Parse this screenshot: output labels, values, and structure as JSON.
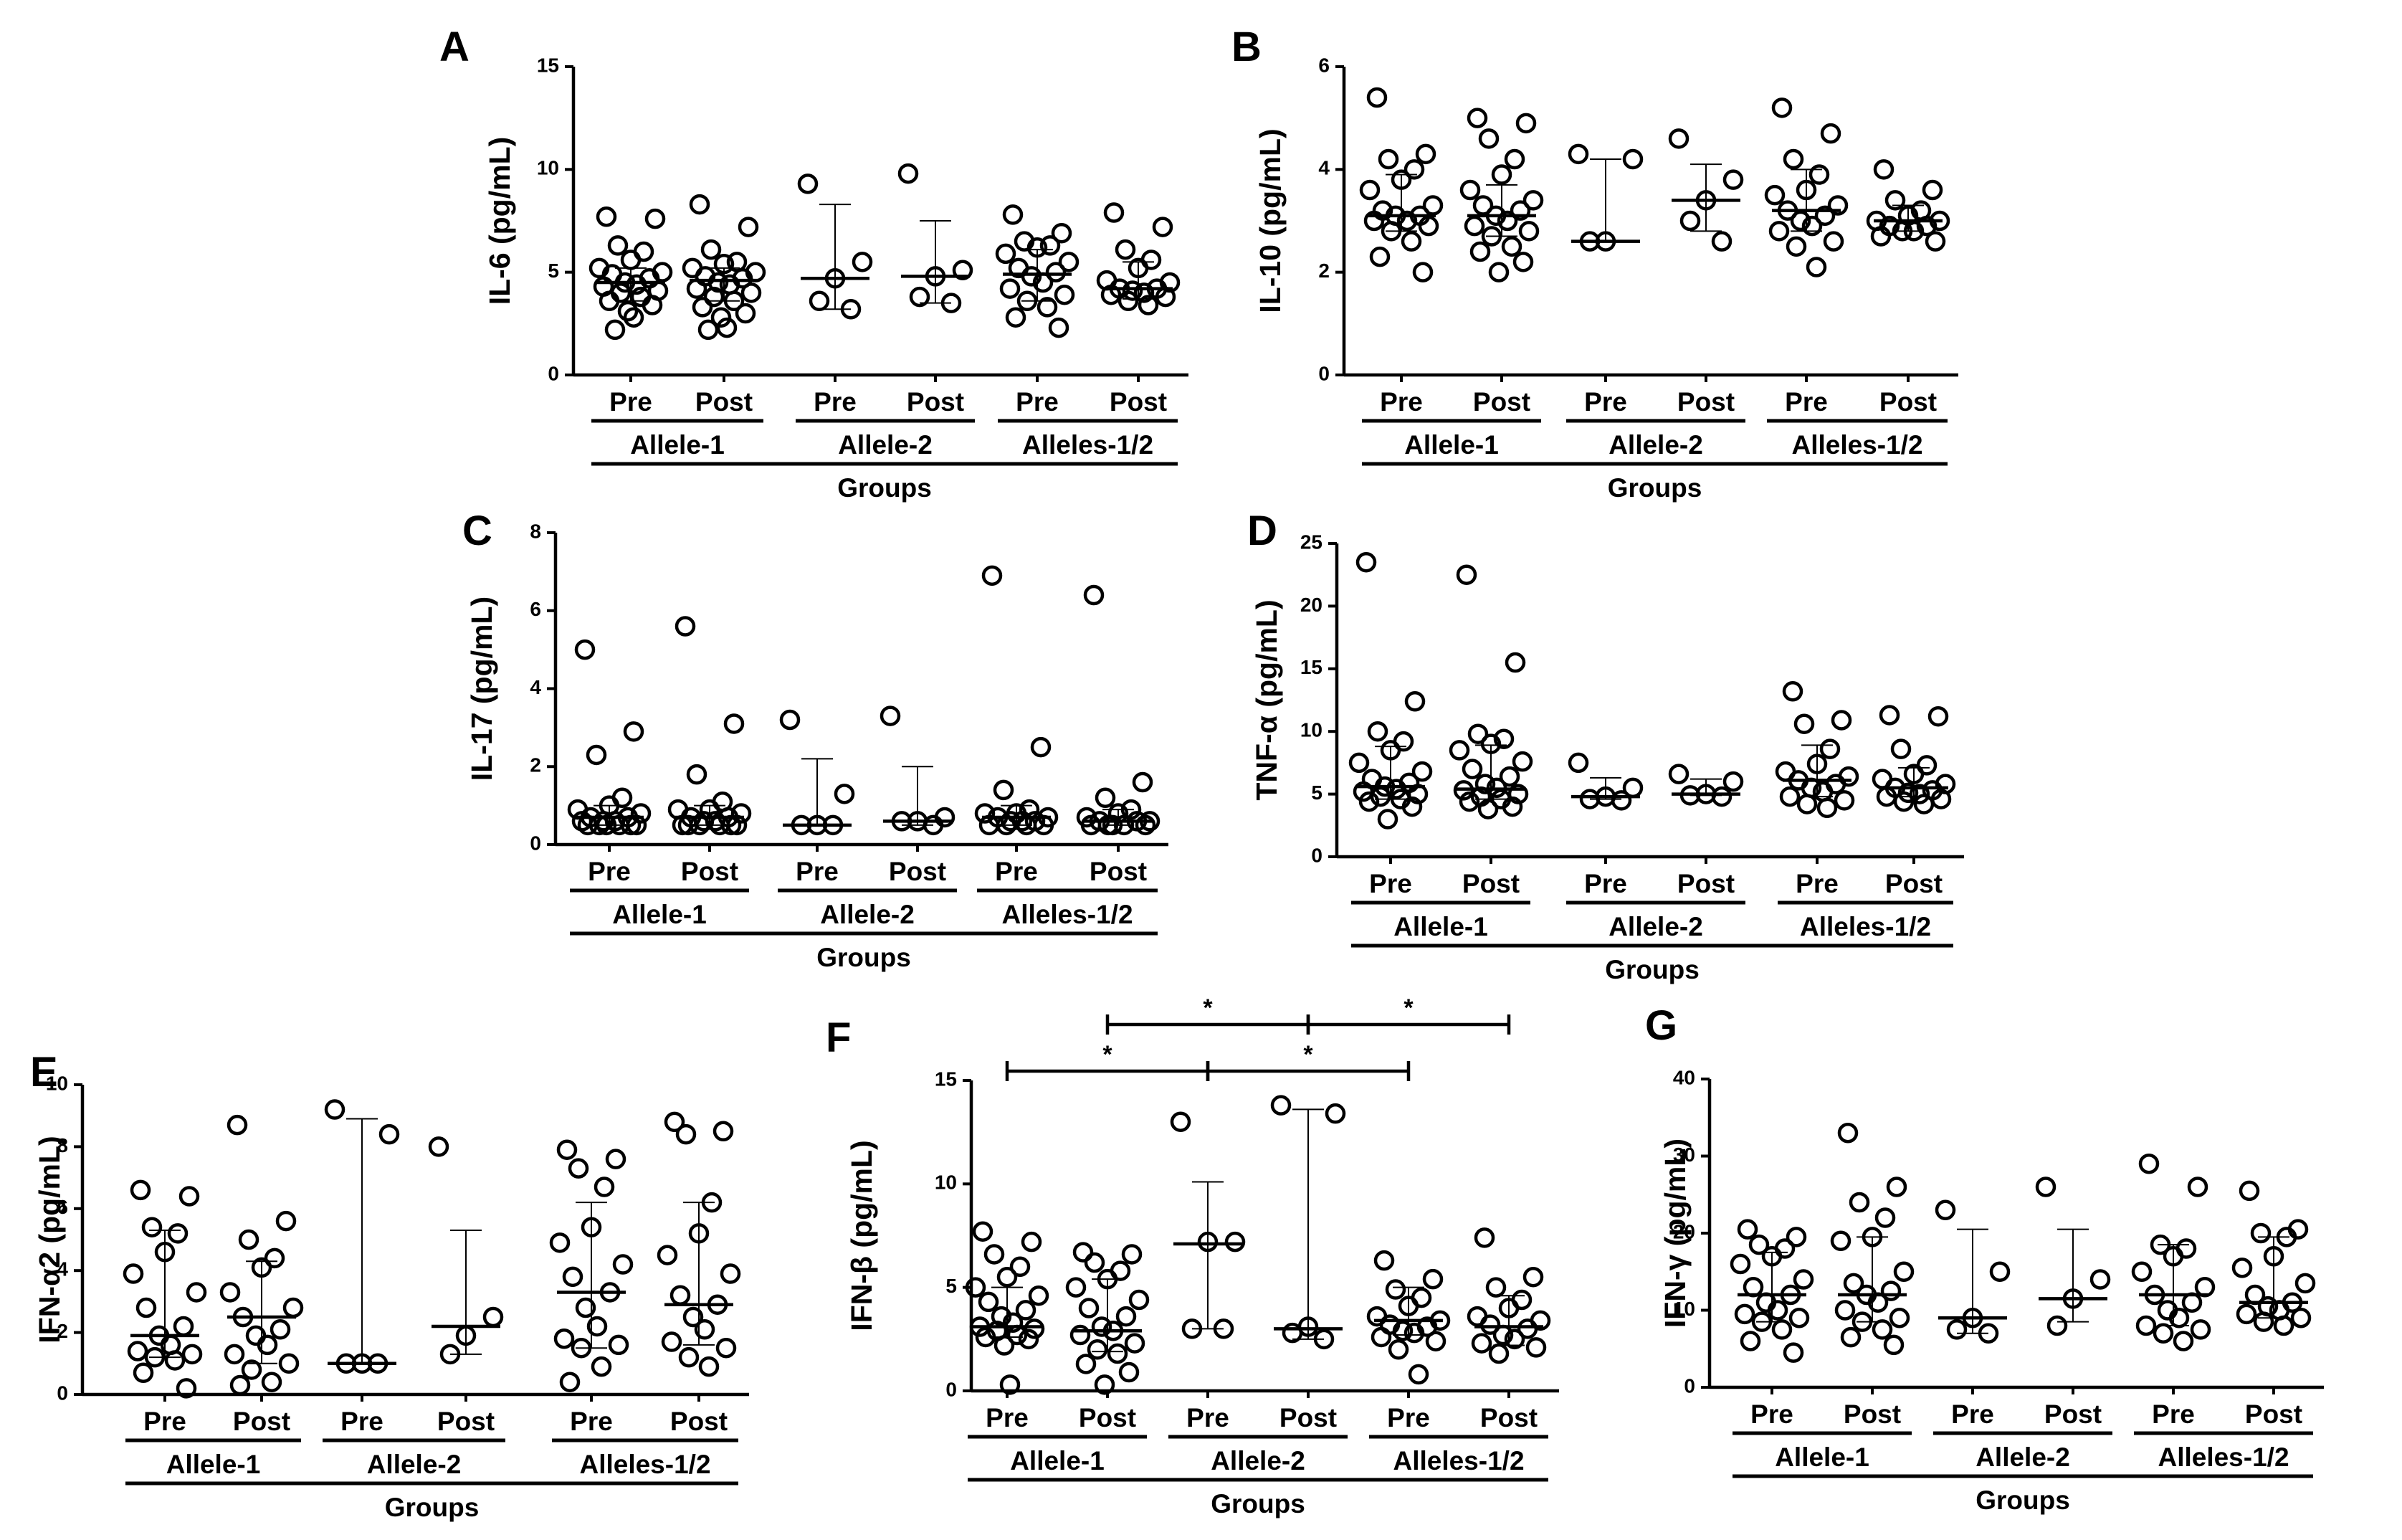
{
  "chart_data": [
    {
      "panel": "A",
      "type": "scatter",
      "ylabel": "IL-6 (pg/mL)",
      "ylim": [
        0,
        15
      ],
      "yticks": [
        0,
        5,
        10,
        15
      ],
      "conditions": [
        "Pre",
        "Post",
        "Pre",
        "Post",
        "Pre",
        "Post"
      ],
      "groups": [
        "Allele-1",
        "Allele-2",
        "Alleles-1/2"
      ],
      "xlabel": "Groups",
      "series": [
        {
          "name": "Allele-1 Pre",
          "median": 4.5,
          "q1": 3.6,
          "q3": 5.2,
          "values": [
            7.7,
            7.6,
            6.3,
            6.0,
            5.6,
            5.2,
            5.0,
            4.9,
            4.7,
            4.5,
            4.4,
            4.3,
            4.1,
            4.0,
            3.8,
            3.6,
            3.4,
            3.1,
            2.8,
            2.2
          ]
        },
        {
          "name": "Allele-1 Post",
          "median": 4.6,
          "q1": 3.6,
          "q3": 5.2,
          "values": [
            8.3,
            7.2,
            6.1,
            5.5,
            5.4,
            5.2,
            5.0,
            4.8,
            4.7,
            4.5,
            4.4,
            4.2,
            4.0,
            3.8,
            3.6,
            3.3,
            3.0,
            2.8,
            2.3,
            2.2
          ]
        },
        {
          "name": "Allele-2 Pre",
          "median": 4.7,
          "q1": 3.2,
          "q3": 8.3,
          "values": [
            9.3,
            5.5,
            4.7,
            3.6,
            3.2
          ]
        },
        {
          "name": "Allele-2 Post",
          "median": 4.8,
          "q1": 3.5,
          "q3": 7.5,
          "values": [
            9.8,
            5.1,
            4.8,
            3.8,
            3.5
          ]
        },
        {
          "name": "Alleles-1/2 Pre",
          "median": 4.9,
          "q1": 3.6,
          "q3": 6.1,
          "values": [
            7.8,
            6.9,
            6.5,
            6.3,
            6.2,
            5.9,
            5.5,
            5.2,
            5.0,
            4.8,
            4.5,
            4.2,
            3.9,
            3.6,
            3.3,
            2.8,
            2.3
          ]
        },
        {
          "name": "Alleles-1/2 Post",
          "median": 4.2,
          "q1": 3.7,
          "q3": 5.5,
          "values": [
            7.9,
            7.2,
            6.1,
            5.6,
            5.2,
            4.6,
            4.5,
            4.2,
            4.2,
            4.1,
            4.0,
            3.9,
            3.8,
            3.6,
            3.4
          ]
        }
      ]
    },
    {
      "panel": "B",
      "type": "scatter",
      "ylabel": "IL-10 (pg/mL)",
      "ylim": [
        0,
        6
      ],
      "yticks": [
        0,
        2,
        4,
        6
      ],
      "conditions": [
        "Pre",
        "Post",
        "Pre",
        "Post",
        "Pre",
        "Post"
      ],
      "groups": [
        "Allele-1",
        "Allele-2",
        "Alleles-1/2"
      ],
      "xlabel": "Groups",
      "series": [
        {
          "name": "Allele-1 Pre",
          "median": 3.1,
          "q1": 2.8,
          "q3": 3.9,
          "values": [
            5.4,
            4.3,
            4.2,
            4.0,
            3.8,
            3.6,
            3.3,
            3.2,
            3.1,
            3.1,
            3.0,
            3.0,
            2.9,
            2.8,
            2.6,
            2.3,
            2.0
          ]
        },
        {
          "name": "Allele-1 Post",
          "median": 3.1,
          "q1": 2.7,
          "q3": 3.7,
          "values": [
            5.0,
            4.9,
            4.6,
            4.2,
            3.9,
            3.6,
            3.4,
            3.3,
            3.2,
            3.1,
            3.0,
            2.9,
            2.8,
            2.7,
            2.5,
            2.4,
            2.2,
            2.0
          ]
        },
        {
          "name": "Allele-2 Pre",
          "median": 2.6,
          "q1": 2.6,
          "q3": 4.2,
          "values": [
            4.3,
            4.2,
            2.6,
            2.6
          ]
        },
        {
          "name": "Allele-2 Post",
          "median": 3.4,
          "q1": 2.8,
          "q3": 4.1,
          "values": [
            4.6,
            3.8,
            3.4,
            3.0,
            2.6
          ]
        },
        {
          "name": "Alleles-1/2 Pre",
          "median": 3.2,
          "q1": 2.8,
          "q3": 4.0,
          "values": [
            5.2,
            4.7,
            4.2,
            3.9,
            3.6,
            3.5,
            3.3,
            3.2,
            3.1,
            3.0,
            2.9,
            2.8,
            2.6,
            2.5,
            2.1
          ]
        },
        {
          "name": "Alleles-1/2 Post",
          "median": 3.0,
          "q1": 2.8,
          "q3": 3.3,
          "values": [
            4.0,
            3.6,
            3.4,
            3.2,
            3.1,
            3.0,
            3.0,
            2.9,
            2.9,
            2.8,
            2.8,
            2.7,
            2.6
          ]
        }
      ]
    },
    {
      "panel": "C",
      "type": "scatter",
      "ylabel": "IL-17 (pg/mL)",
      "ylim": [
        0,
        8
      ],
      "yticks": [
        0,
        2,
        4,
        6,
        8
      ],
      "conditions": [
        "Pre",
        "Post",
        "Pre",
        "Post",
        "Pre",
        "Post"
      ],
      "groups": [
        "Allele-1",
        "Allele-2",
        "Alleles-1/2"
      ],
      "xlabel": "Groups",
      "series": [
        {
          "name": "Allele-1 Pre",
          "median": 0.7,
          "q1": 0.5,
          "q3": 1.0,
          "values": [
            5.0,
            2.9,
            2.3,
            1.2,
            1.0,
            0.9,
            0.8,
            0.7,
            0.7,
            0.6,
            0.6,
            0.6,
            0.5,
            0.5,
            0.5,
            0.5,
            0.5,
            0.5
          ]
        },
        {
          "name": "Allele-1 Post",
          "median": 0.7,
          "q1": 0.5,
          "q3": 1.0,
          "values": [
            5.6,
            3.1,
            1.8,
            1.1,
            0.9,
            0.9,
            0.8,
            0.7,
            0.7,
            0.6,
            0.6,
            0.5,
            0.5,
            0.5,
            0.5,
            0.5,
            0.5
          ]
        },
        {
          "name": "Allele-2 Pre",
          "median": 0.5,
          "q1": 0.5,
          "q3": 2.2,
          "values": [
            3.2,
            1.3,
            0.5,
            0.5,
            0.5
          ]
        },
        {
          "name": "Allele-2 Post",
          "median": 0.6,
          "q1": 0.5,
          "q3": 2.0,
          "values": [
            3.3,
            0.7,
            0.6,
            0.6,
            0.5
          ]
        },
        {
          "name": "Alleles-1/2 Pre",
          "median": 0.7,
          "q1": 0.5,
          "q3": 1.0,
          "values": [
            6.9,
            2.5,
            1.4,
            0.9,
            0.8,
            0.8,
            0.7,
            0.7,
            0.6,
            0.6,
            0.6,
            0.5,
            0.5,
            0.5,
            0.5
          ]
        },
        {
          "name": "Alleles-1/2 Post",
          "median": 0.6,
          "q1": 0.5,
          "q3": 0.9,
          "values": [
            6.4,
            1.6,
            1.2,
            0.9,
            0.8,
            0.7,
            0.6,
            0.6,
            0.6,
            0.5,
            0.5,
            0.5,
            0.5,
            0.5
          ]
        }
      ]
    },
    {
      "panel": "D",
      "type": "scatter",
      "ylabel": "TNF-α (pg/mL)",
      "ylim": [
        0,
        25
      ],
      "yticks": [
        0,
        5,
        10,
        15,
        20,
        25
      ],
      "conditions": [
        "Pre",
        "Post",
        "Pre",
        "Post",
        "Pre",
        "Post"
      ],
      "groups": [
        "Allele-1",
        "Allele-2",
        "Alleles-1/2"
      ],
      "xlabel": "Groups",
      "series": [
        {
          "name": "Allele-1 Pre",
          "median": 5.6,
          "q1": 4.6,
          "q3": 8.8,
          "values": [
            23.5,
            12.4,
            10.0,
            9.2,
            8.5,
            7.5,
            6.8,
            6.2,
            5.9,
            5.6,
            5.4,
            5.2,
            5.0,
            4.8,
            4.6,
            4.4,
            4.0,
            3.0
          ]
        },
        {
          "name": "Allele-1 Post",
          "median": 5.4,
          "q1": 4.6,
          "q3": 8.9,
          "values": [
            22.5,
            15.5,
            9.8,
            9.4,
            9.0,
            8.5,
            7.6,
            7.0,
            6.4,
            5.8,
            5.5,
            5.3,
            5.0,
            4.8,
            4.6,
            4.4,
            4.0,
            3.8
          ]
        },
        {
          "name": "Allele-2 Pre",
          "median": 4.8,
          "q1": 4.6,
          "q3": 6.3,
          "values": [
            7.5,
            5.5,
            4.8,
            4.6,
            4.5
          ]
        },
        {
          "name": "Allele-2 Post",
          "median": 5.0,
          "q1": 4.9,
          "q3": 6.2,
          "values": [
            6.6,
            6.0,
            5.0,
            4.9,
            4.8
          ]
        },
        {
          "name": "Alleles-1/2 Pre",
          "median": 6.1,
          "q1": 4.8,
          "q3": 8.9,
          "values": [
            13.2,
            10.9,
            10.6,
            8.6,
            7.4,
            6.8,
            6.4,
            6.1,
            5.8,
            5.5,
            5.2,
            4.8,
            4.5,
            4.2,
            3.9
          ]
        },
        {
          "name": "Alleles-1/2 Post",
          "median": 5.5,
          "q1": 4.8,
          "q3": 7.1,
          "values": [
            11.3,
            11.2,
            8.6,
            7.3,
            6.6,
            6.2,
            5.8,
            5.5,
            5.3,
            5.1,
            5.0,
            4.8,
            4.6,
            4.4,
            4.2
          ]
        }
      ]
    },
    {
      "panel": "E",
      "type": "scatter",
      "ylabel": "IFN-α2 (pg/mL)",
      "ylim": [
        0,
        10
      ],
      "yticks": [
        0,
        2,
        4,
        6,
        8,
        10
      ],
      "conditions": [
        "Pre",
        "Post",
        "Pre",
        "Post",
        "Pre",
        "Post"
      ],
      "groups": [
        "Allele-1",
        "Allele-2",
        "Alleles-1/2"
      ],
      "xlabel": "Groups",
      "series": [
        {
          "name": "Allele-1 Pre",
          "median": 1.9,
          "q1": 1.2,
          "q3": 5.3,
          "values": [
            6.6,
            6.4,
            5.4,
            5.2,
            4.6,
            3.9,
            3.3,
            2.8,
            2.2,
            1.9,
            1.6,
            1.4,
            1.3,
            1.2,
            1.1,
            0.7,
            0.2
          ]
        },
        {
          "name": "Allele-1 Post",
          "median": 2.5,
          "q1": 1.0,
          "q3": 4.3,
          "values": [
            8.7,
            5.6,
            5.0,
            4.4,
            4.1,
            3.3,
            2.8,
            2.5,
            2.1,
            1.9,
            1.6,
            1.3,
            1.0,
            0.8,
            0.4,
            0.3
          ]
        },
        {
          "name": "Allele-2 Pre",
          "median": 1.0,
          "q1": 1.0,
          "q3": 8.9,
          "values": [
            9.2,
            8.4,
            1.0,
            1.0,
            1.0
          ]
        },
        {
          "name": "Allele-2 Post",
          "median": 2.2,
          "q1": 1.3,
          "q3": 5.3,
          "values": [
            8.0,
            2.5,
            1.9,
            1.3
          ]
        },
        {
          "name": "Alleles-1/2 Pre",
          "median": 3.3,
          "q1": 1.5,
          "q3": 6.2,
          "values": [
            7.9,
            7.6,
            7.3,
            6.7,
            5.4,
            4.9,
            4.2,
            3.8,
            3.3,
            2.8,
            2.2,
            1.8,
            1.6,
            1.5,
            0.9,
            0.4
          ]
        },
        {
          "name": "Alleles-1/2 Post",
          "median": 2.9,
          "q1": 1.6,
          "q3": 6.2,
          "values": [
            8.8,
            8.5,
            8.4,
            6.2,
            5.2,
            4.5,
            3.9,
            3.2,
            2.9,
            2.5,
            2.1,
            1.7,
            1.5,
            1.2,
            0.9
          ]
        }
      ]
    },
    {
      "panel": "F",
      "type": "scatter",
      "ylabel": "IFN-β (pg/mL)",
      "ylim": [
        0,
        15
      ],
      "yticks": [
        0,
        5,
        10,
        15
      ],
      "conditions": [
        "Pre",
        "Post",
        "Pre",
        "Post",
        "Pre",
        "Post"
      ],
      "groups": [
        "Allele-1",
        "Allele-2",
        "Alleles-1/2"
      ],
      "xlabel": "Groups",
      "significance": [
        {
          "from": 1,
          "to": 3,
          "label": "*",
          "level": 1
        },
        {
          "from": 3,
          "to": 5,
          "label": "*",
          "level": 1
        },
        {
          "from": 0,
          "to": 2,
          "label": "*",
          "level": 0
        },
        {
          "from": 2,
          "to": 4,
          "label": "*",
          "level": 0
        }
      ],
      "series": [
        {
          "name": "Allele-1 Pre",
          "median": 3.1,
          "q1": 2.6,
          "q3": 5.0,
          "values": [
            7.7,
            7.2,
            6.6,
            6.0,
            5.5,
            5.0,
            4.6,
            4.3,
            3.9,
            3.6,
            3.3,
            3.1,
            3.0,
            2.9,
            2.7,
            2.6,
            2.5,
            2.2,
            0.3
          ]
        },
        {
          "name": "Allele-1 Post",
          "median": 2.9,
          "q1": 1.9,
          "q3": 5.4,
          "values": [
            6.7,
            6.6,
            6.2,
            5.8,
            5.4,
            5.0,
            4.4,
            4.0,
            3.6,
            3.1,
            2.9,
            2.7,
            2.3,
            2.0,
            1.8,
            1.3,
            0.9,
            0.3
          ]
        },
        {
          "name": "Allele-2 Pre",
          "median": 7.1,
          "q1": 3.0,
          "q3": 10.1,
          "values": [
            13.0,
            7.2,
            7.2,
            3.0,
            3.0
          ]
        },
        {
          "name": "Allele-2 Post",
          "median": 3.0,
          "q1": 2.5,
          "q3": 13.6,
          "values": [
            13.8,
            13.4,
            3.1,
            2.8,
            2.5
          ]
        },
        {
          "name": "Alleles-1/2 Pre",
          "median": 3.4,
          "q1": 2.7,
          "q3": 5.0,
          "values": [
            6.3,
            5.4,
            4.9,
            4.5,
            4.1,
            3.6,
            3.4,
            3.2,
            3.1,
            2.9,
            2.8,
            2.6,
            2.4,
            2.0,
            0.8
          ]
        },
        {
          "name": "Alleles-1/2 Post",
          "median": 3.1,
          "q1": 2.2,
          "q3": 4.6,
          "values": [
            7.4,
            5.5,
            5.0,
            4.4,
            4.0,
            3.6,
            3.4,
            3.2,
            3.0,
            2.7,
            2.5,
            2.3,
            2.1,
            1.8
          ]
        }
      ]
    },
    {
      "panel": "G",
      "type": "scatter",
      "ylabel": "IFN-γ (pg/mL)",
      "ylim": [
        0,
        40
      ],
      "yticks": [
        0,
        10,
        20,
        30,
        40
      ],
      "conditions": [
        "Pre",
        "Post",
        "Pre",
        "Post",
        "Pre",
        "Post"
      ],
      "groups": [
        "Allele-1",
        "Allele-2",
        "Alleles-1/2"
      ],
      "xlabel": "Groups",
      "series": [
        {
          "name": "Allele-1 Pre",
          "median": 12.0,
          "q1": 8.5,
          "q3": 17.5,
          "values": [
            20.5,
            19.5,
            18.5,
            18.0,
            17.0,
            16.0,
            14.0,
            13.0,
            12.0,
            11.0,
            10.0,
            9.5,
            9.0,
            8.5,
            7.5,
            6.0,
            4.5
          ]
        },
        {
          "name": "Allele-1 Post",
          "median": 12.0,
          "q1": 8.5,
          "q3": 19.5,
          "values": [
            33.0,
            26.0,
            24.0,
            22.0,
            19.5,
            19.0,
            15.0,
            13.5,
            12.5,
            12.0,
            11.0,
            10.0,
            9.0,
            8.5,
            7.5,
            6.5,
            5.5
          ]
        },
        {
          "name": "Allele-2 Pre",
          "median": 9.0,
          "q1": 7.0,
          "q3": 20.5,
          "values": [
            23.0,
            15.0,
            9.0,
            7.5,
            7.0
          ]
        },
        {
          "name": "Allele-2 Post",
          "median": 11.5,
          "q1": 8.5,
          "q3": 20.5,
          "values": [
            26.0,
            14.0,
            11.5,
            8.0
          ]
        },
        {
          "name": "Alleles-1/2 Pre",
          "median": 12.0,
          "q1": 8.0,
          "q3": 18.5,
          "values": [
            29.0,
            26.0,
            18.5,
            18.0,
            17.0,
            15.0,
            13.0,
            12.0,
            11.0,
            10.0,
            9.0,
            8.0,
            7.5,
            7.0,
            6.0
          ]
        },
        {
          "name": "Alleles-1/2 Post",
          "median": 11.0,
          "q1": 9.0,
          "q3": 19.5,
          "values": [
            25.5,
            20.5,
            20.0,
            19.5,
            17.0,
            15.5,
            13.5,
            12.0,
            11.0,
            10.5,
            10.0,
            9.5,
            9.0,
            8.5,
            8.0
          ]
        }
      ]
    }
  ]
}
